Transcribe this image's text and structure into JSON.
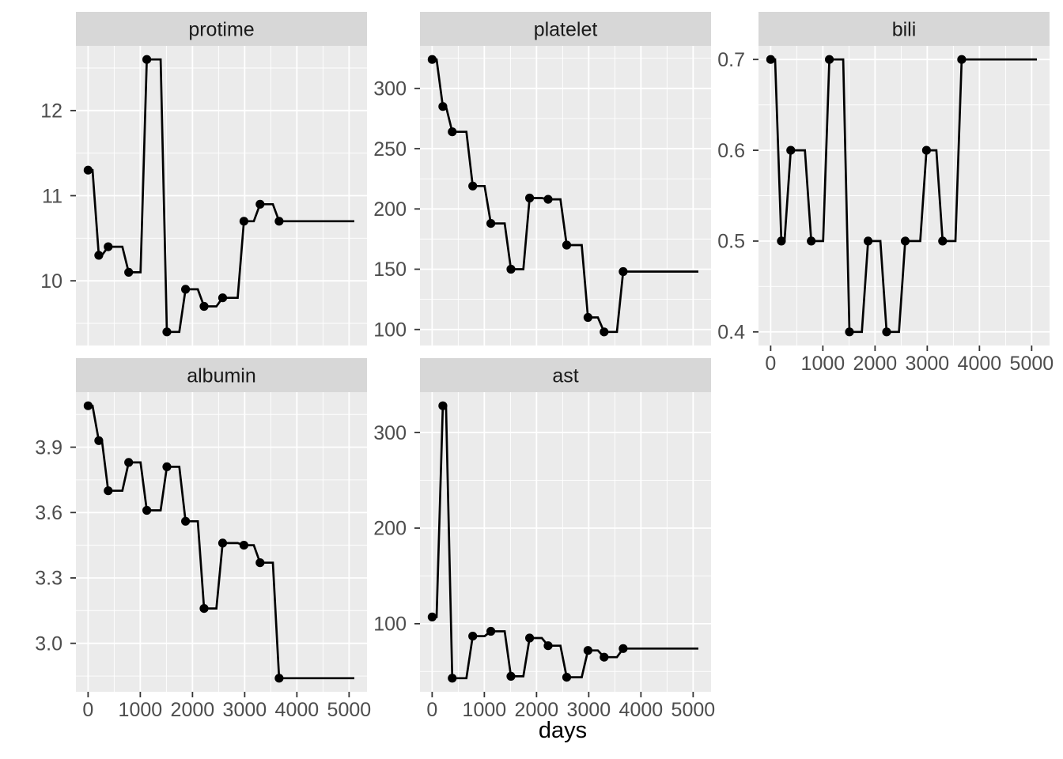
{
  "figure": {
    "kind": "faceted step chart (ggplot2 facet_wrap, free y scales)",
    "xlabel": "days"
  },
  "chart_data": {
    "type": "line",
    "subtype": "step-locf-with-points",
    "title": "",
    "xlabel": "days",
    "ylabel": "",
    "grid": true,
    "legend": "none",
    "x_days": [
      0,
      205,
      385,
      777,
      1125,
      1510,
      1867,
      2222,
      2578,
      2985,
      3295,
      3660
    ],
    "end_day": 5100,
    "ramp_days": 120,
    "xlim": [
      -233,
      5343
    ],
    "x_ticks": [
      0,
      1000,
      2000,
      3000,
      4000,
      5000
    ],
    "x_tick_labels": [
      "0",
      "1000",
      "2000",
      "3000",
      "4000",
      "5000"
    ],
    "x_minor_ticks": [
      500,
      1500,
      2500,
      3500,
      4500
    ],
    "panel_bg": "#EBEBEB",
    "strip_bg": "#D7D7D7",
    "grid_color": "#FFFFFF",
    "line_color": "#000000",
    "point_color": "#000000",
    "axis_text_color": "#4D4D4D",
    "tick_mark_color": "#333333",
    "panels": [
      {
        "title": "protime",
        "row": 0,
        "col": 0,
        "show_x_axis": false,
        "values": [
          11.3,
          10.3,
          10.4,
          10.1,
          12.6,
          9.4,
          9.9,
          9.7,
          9.8,
          10.7,
          10.9,
          10.7
        ],
        "ylim": [
          9.24,
          12.76
        ],
        "y_ticks": [
          10,
          11,
          12
        ],
        "y_tick_labels": [
          "10",
          "11",
          "12"
        ],
        "y_minor_ticks": [
          9.5,
          10.5,
          11.5,
          12.5
        ]
      },
      {
        "title": "platelet",
        "row": 0,
        "col": 1,
        "show_x_axis": false,
        "values": [
          324,
          285,
          264,
          219,
          188,
          150,
          209,
          208,
          170,
          110,
          98,
          148
        ],
        "ylim": [
          86.7,
          335.3
        ],
        "y_ticks": [
          100,
          150,
          200,
          250,
          300
        ],
        "y_tick_labels": [
          "100",
          "150",
          "200",
          "250",
          "300"
        ],
        "y_minor_ticks": [
          125,
          175,
          225,
          275,
          325
        ]
      },
      {
        "title": "bili",
        "row": 0,
        "col": 2,
        "show_x_axis": true,
        "values": [
          0.7,
          0.5,
          0.6,
          0.5,
          0.7,
          0.4,
          0.5,
          0.4,
          0.5,
          0.6,
          0.5,
          0.7
        ],
        "ylim": [
          0.385,
          0.715
        ],
        "y_ticks": [
          0.4,
          0.5,
          0.6,
          0.7
        ],
        "y_tick_labels": [
          "0.4",
          "0.5",
          "0.6",
          "0.7"
        ],
        "y_minor_ticks": [
          0.45,
          0.55,
          0.65
        ]
      },
      {
        "title": "albumin",
        "row": 1,
        "col": 0,
        "show_x_axis": true,
        "values": [
          4.09,
          3.93,
          3.7,
          3.83,
          3.61,
          3.81,
          3.56,
          3.16,
          3.46,
          3.45,
          3.37,
          2.84
        ],
        "ylim": [
          2.7775,
          4.1525
        ],
        "y_ticks": [
          3.0,
          3.3,
          3.6,
          3.9
        ],
        "y_tick_labels": [
          "3.0",
          "3.3",
          "3.6",
          "3.9"
        ],
        "y_minor_ticks": [
          2.85,
          3.15,
          3.45,
          3.75,
          4.05
        ]
      },
      {
        "title": "ast",
        "row": 1,
        "col": 1,
        "show_x_axis": true,
        "values": [
          107,
          328,
          43,
          87,
          92,
          45,
          85,
          77,
          44,
          72,
          65,
          74
        ],
        "ylim": [
          28.75,
          342.25
        ],
        "y_ticks": [
          100,
          200,
          300
        ],
        "y_tick_labels": [
          "100",
          "200",
          "300"
        ],
        "y_minor_ticks": [
          50,
          150,
          250
        ]
      }
    ]
  }
}
